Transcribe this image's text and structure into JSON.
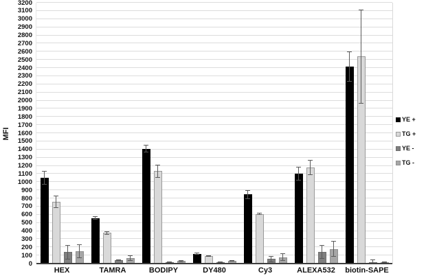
{
  "figure": {
    "title": "",
    "y_axis_title": "MFI"
  },
  "chart_data": {
    "type": "bar",
    "title": "",
    "xlabel": "",
    "ylabel": "MFI",
    "ylim": [
      0,
      3200
    ],
    "ytick_step": 100,
    "yticks": [
      0,
      100,
      200,
      300,
      400,
      500,
      600,
      700,
      800,
      900,
      1000,
      1100,
      1200,
      1300,
      1400,
      1500,
      1600,
      1700,
      1800,
      1900,
      2000,
      2100,
      2200,
      2300,
      2400,
      2500,
      2600,
      2700,
      2800,
      2900,
      3000,
      3100,
      3200
    ],
    "grid": true,
    "legend_position": "right",
    "error_bars": true,
    "categories": [
      "HEX",
      "TAMRA",
      "BODIPY",
      "DY480",
      "Cy3",
      "ALEXA532",
      "biotin-SAPE"
    ],
    "series": [
      {
        "name": "YE +",
        "fill": "#000000",
        "border": "#000000",
        "values": [
          1050,
          560,
          1410,
          120,
          850,
          1100,
          2420
        ],
        "errors": [
          85,
          25,
          45,
          12,
          55,
          85,
          185
        ]
      },
      {
        "name": "TG +",
        "fill": "#d9d9d9",
        "border": "#999999",
        "values": [
          760,
          375,
          1135,
          95,
          610,
          1180,
          2540
        ],
        "errors": [
          75,
          25,
          80,
          10,
          15,
          90,
          575
        ]
      },
      {
        "name": "YE -",
        "fill": "#7f7f7f",
        "border": "#6e6e6e",
        "values": [
          140,
          40,
          10,
          15,
          55,
          140,
          10
        ],
        "errors": [
          90,
          10,
          5,
          5,
          40,
          85,
          40
        ]
      },
      {
        "name": "TG -",
        "fill": "#a6a6a6",
        "border": "#8f8f8f",
        "values": [
          150,
          70,
          30,
          30,
          80,
          180,
          20
        ],
        "errors": [
          85,
          35,
          10,
          8,
          50,
          95,
          8
        ]
      }
    ],
    "colors": {
      "gridline": "#dcdcdc",
      "axis": "#3f3f3f",
      "error_bar": "#595959"
    }
  }
}
